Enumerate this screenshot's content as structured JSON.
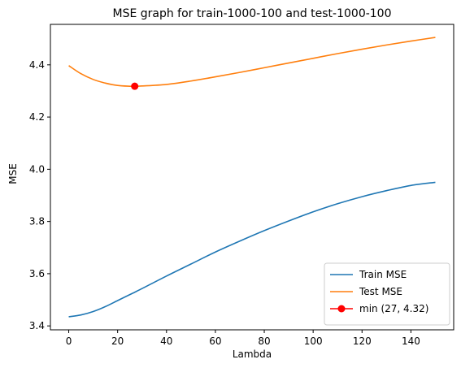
{
  "chart_data": {
    "type": "line",
    "title": "MSE graph for train-1000-100 and test-1000-100",
    "xlabel": "Lambda",
    "ylabel": "MSE",
    "xlim": [
      -7.5,
      157.5
    ],
    "ylim": [
      3.385,
      4.555
    ],
    "xticks": [
      0,
      20,
      40,
      60,
      80,
      100,
      120,
      140
    ],
    "yticks": [
      3.4,
      3.6,
      3.8,
      4.0,
      4.2,
      4.4
    ],
    "ytick_labels": [
      "3.4",
      "3.6",
      "3.8",
      "4.0",
      "4.2",
      "4.4"
    ],
    "grid": false,
    "legend_position": "lower right",
    "x": [
      0,
      5,
      10,
      15,
      20,
      25,
      27,
      30,
      40,
      50,
      60,
      70,
      80,
      90,
      100,
      110,
      120,
      130,
      140,
      150
    ],
    "series": [
      {
        "name": "Train MSE",
        "color": "#1f77b4",
        "values": [
          3.435,
          3.442,
          3.455,
          3.474,
          3.497,
          3.52,
          3.529,
          3.543,
          3.591,
          3.637,
          3.683,
          3.725,
          3.765,
          3.802,
          3.837,
          3.868,
          3.895,
          3.918,
          3.938,
          3.95
        ]
      },
      {
        "name": "Test MSE",
        "color": "#ff7f0e",
        "values": [
          4.397,
          4.366,
          4.344,
          4.33,
          4.321,
          4.318,
          4.318,
          4.319,
          4.325,
          4.338,
          4.354,
          4.371,
          4.389,
          4.407,
          4.425,
          4.443,
          4.46,
          4.476,
          4.491,
          4.505
        ]
      }
    ],
    "marker": {
      "name": "min (27, 4.32)",
      "x": 27,
      "y": 4.318,
      "color": "#ff0000"
    }
  }
}
